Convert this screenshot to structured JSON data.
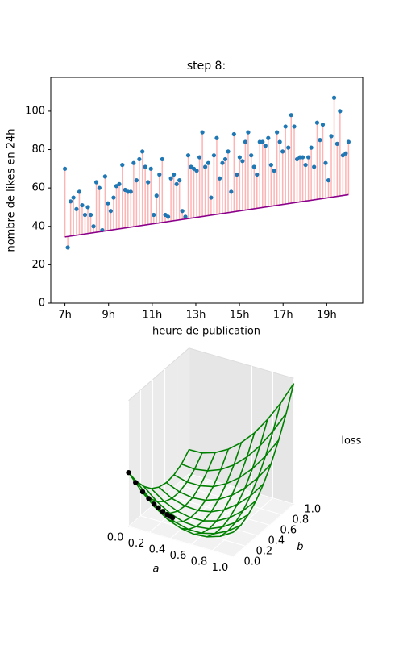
{
  "chart_data": [
    {
      "type": "scatter",
      "title": "step 8:",
      "xlabel": "heure de publication",
      "ylabel": "nombre de likes en 24h",
      "xlim": [
        6.35,
        20.65
      ],
      "xticks": [
        {
          "value": 7,
          "label": "7h"
        },
        {
          "value": 9,
          "label": "9h"
        },
        {
          "value": 11,
          "label": "11h"
        },
        {
          "value": 13,
          "label": "13h"
        },
        {
          "value": 15,
          "label": "15h"
        },
        {
          "value": 17,
          "label": "17h"
        },
        {
          "value": 19,
          "label": "19h"
        }
      ],
      "ylim": [
        0,
        117.6
      ],
      "yticks": [
        0,
        20,
        40,
        60,
        80,
        100
      ],
      "series": [
        {
          "color": "#1f77b4",
          "stem_color": "#ffb3b3",
          "x": [
            7.0,
            7.13,
            7.26,
            7.39,
            7.53,
            7.66,
            7.79,
            7.92,
            8.05,
            8.18,
            8.31,
            8.44,
            8.58,
            8.71,
            8.84,
            8.97,
            9.1,
            9.23,
            9.36,
            9.49,
            9.63,
            9.76,
            9.89,
            10.02,
            10.15,
            10.28,
            10.41,
            10.55,
            10.68,
            10.81,
            10.94,
            11.07,
            11.2,
            11.33,
            11.46,
            11.6,
            11.73,
            11.86,
            11.99,
            12.12,
            12.25,
            12.38,
            12.52,
            12.65,
            12.78,
            12.91,
            13.04,
            13.17,
            13.3,
            13.43,
            13.57,
            13.7,
            13.83,
            13.96,
            14.09,
            14.22,
            14.35,
            14.48,
            14.62,
            14.75,
            14.88,
            15.01,
            15.14,
            15.27,
            15.4,
            15.54,
            15.67,
            15.8,
            15.93,
            16.06,
            16.19,
            16.32,
            16.45,
            16.59,
            16.72,
            16.85,
            16.98,
            17.11,
            17.24,
            17.37,
            17.51,
            17.64,
            17.77,
            17.9,
            18.03,
            18.16,
            18.29,
            18.42,
            18.56,
            18.69,
            18.82,
            18.95,
            19.08,
            19.21,
            19.34,
            19.48,
            19.61,
            19.74,
            19.87,
            20.0
          ],
          "values": [
            70,
            29,
            53,
            55,
            49,
            58,
            51,
            46,
            50,
            46,
            40,
            63,
            60,
            38,
            66,
            52,
            48,
            55,
            61,
            62,
            72,
            59,
            58,
            58,
            73,
            64,
            75,
            79,
            71,
            63,
            70,
            46,
            56,
            67,
            75,
            46,
            45,
            65,
            67,
            62,
            64,
            48,
            45,
            77,
            71,
            70,
            69,
            76,
            89,
            71,
            73,
            55,
            77,
            86,
            65,
            73,
            75,
            79,
            58,
            88,
            67,
            76,
            74,
            84,
            89,
            77,
            71,
            67,
            84,
            84,
            82,
            86,
            72,
            69,
            89,
            84,
            79,
            92,
            81,
            98,
            92,
            75,
            76,
            76,
            72,
            76,
            81,
            71,
            94,
            85,
            93,
            73,
            64,
            87,
            107,
            83,
            100,
            77,
            78,
            84
          ]
        },
        {
          "type": "line",
          "color": "#8b008b",
          "x": [
            7,
            20
          ],
          "values": [
            34.5,
            56.5
          ]
        }
      ]
    },
    {
      "type": "surface",
      "xlabel": "a",
      "ylabel": "b",
      "zlabel": "loss",
      "color": "#008000",
      "xlim": [
        0,
        1
      ],
      "ylim": [
        0,
        1
      ],
      "zlim": [
        0,
        3
      ],
      "xticks": [
        {
          "value": 0,
          "label": "0.0"
        },
        {
          "value": 0.2,
          "label": "0.2"
        },
        {
          "value": 0.4,
          "label": "0.4"
        },
        {
          "value": 0.6,
          "label": "0.6"
        },
        {
          "value": 0.8,
          "label": "0.8"
        },
        {
          "value": 1,
          "label": "1.0"
        }
      ],
      "yticks": [
        {
          "value": 0,
          "label": "0.0"
        },
        {
          "value": 0.2,
          "label": "0.2"
        },
        {
          "value": 0.4,
          "label": "0.4"
        },
        {
          "value": 0.6,
          "label": "0.6"
        },
        {
          "value": 0.8,
          "label": "0.8"
        },
        {
          "value": 1,
          "label": "1.0"
        }
      ],
      "a": [
        0,
        0.125,
        0.25,
        0.375,
        0.5,
        0.625,
        0.75,
        0.875,
        1
      ],
      "b": [
        0,
        0.125,
        0.25,
        0.375,
        0.5,
        0.625,
        0.75,
        0.875,
        1
      ],
      "loss": [
        [
          1.28,
          0.92,
          0.64,
          0.43,
          0.31,
          0.26,
          0.29,
          0.39,
          0.58
        ],
        [
          0.92,
          0.61,
          0.37,
          0.21,
          0.13,
          0.13,
          0.21,
          0.36,
          0.59
        ],
        [
          0.64,
          0.37,
          0.18,
          0.07,
          0.04,
          0.08,
          0.21,
          0.41,
          0.69
        ],
        [
          0.43,
          0.21,
          0.07,
          0.01,
          0.02,
          0.11,
          0.28,
          0.53,
          0.86
        ],
        [
          0.31,
          0.13,
          0.04,
          0.02,
          0.08,
          0.22,
          0.44,
          0.73,
          1.11
        ],
        [
          0.26,
          0.13,
          0.08,
          0.11,
          0.22,
          0.41,
          0.67,
          1.01,
          1.43
        ],
        [
          0.29,
          0.21,
          0.21,
          0.28,
          0.44,
          0.67,
          0.98,
          1.37,
          1.84
        ],
        [
          0.39,
          0.36,
          0.41,
          0.53,
          0.73,
          1.01,
          1.37,
          1.81,
          2.32
        ],
        [
          0.58,
          0.59,
          0.69,
          0.86,
          1.11,
          1.43,
          1.84,
          2.32,
          2.88
        ]
      ],
      "path": {
        "color": "#000000",
        "a": [
          0,
          0.05,
          0.1,
          0.14,
          0.18,
          0.21,
          0.24,
          0.27,
          0.29,
          0.31
        ],
        "b": [
          0,
          0.03,
          0.06,
          0.09,
          0.11,
          0.13,
          0.15,
          0.17,
          0.18,
          0.19
        ],
        "z": [
          1.28,
          1.04,
          0.82,
          0.65,
          0.52,
          0.43,
          0.34,
          0.26,
          0.22,
          0.19
        ]
      }
    }
  ]
}
